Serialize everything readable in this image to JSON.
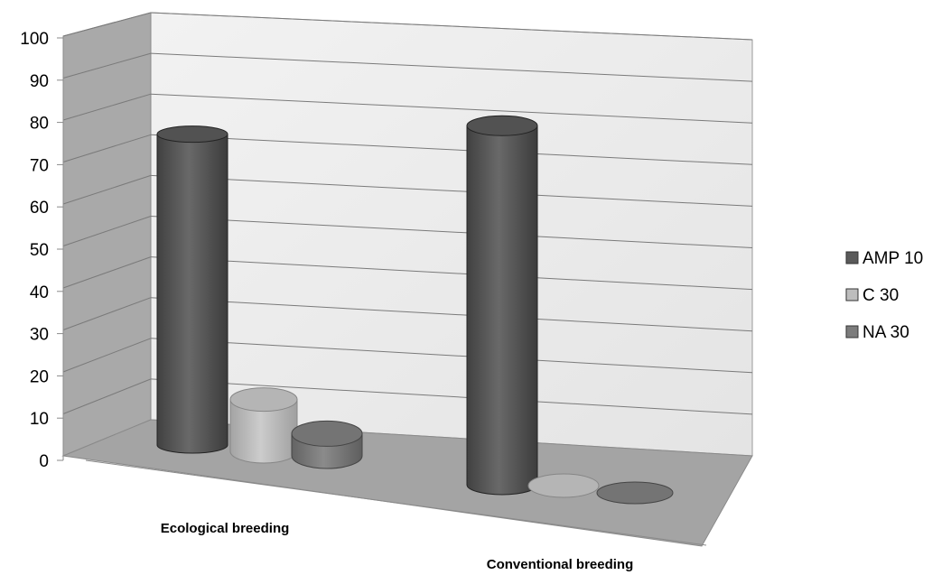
{
  "chart_data": {
    "type": "bar",
    "categories": [
      "Ecological breeding",
      "Conventional breeding"
    ],
    "series": [
      {
        "name": "AMP 10",
        "values": [
          84,
          97
        ],
        "color": "#5a5a5a"
      },
      {
        "name": "C 30",
        "values": [
          14,
          0
        ],
        "color": "#bdbdbd"
      },
      {
        "name": "NA 30",
        "values": [
          6,
          0
        ],
        "color": "#7c7c7c"
      }
    ],
    "ylim": [
      0,
      100
    ],
    "yticks": [
      "0",
      "10",
      "20",
      "30",
      "40",
      "50",
      "60",
      "70",
      "80",
      "90",
      "100"
    ],
    "grid": true,
    "legend": "right"
  }
}
